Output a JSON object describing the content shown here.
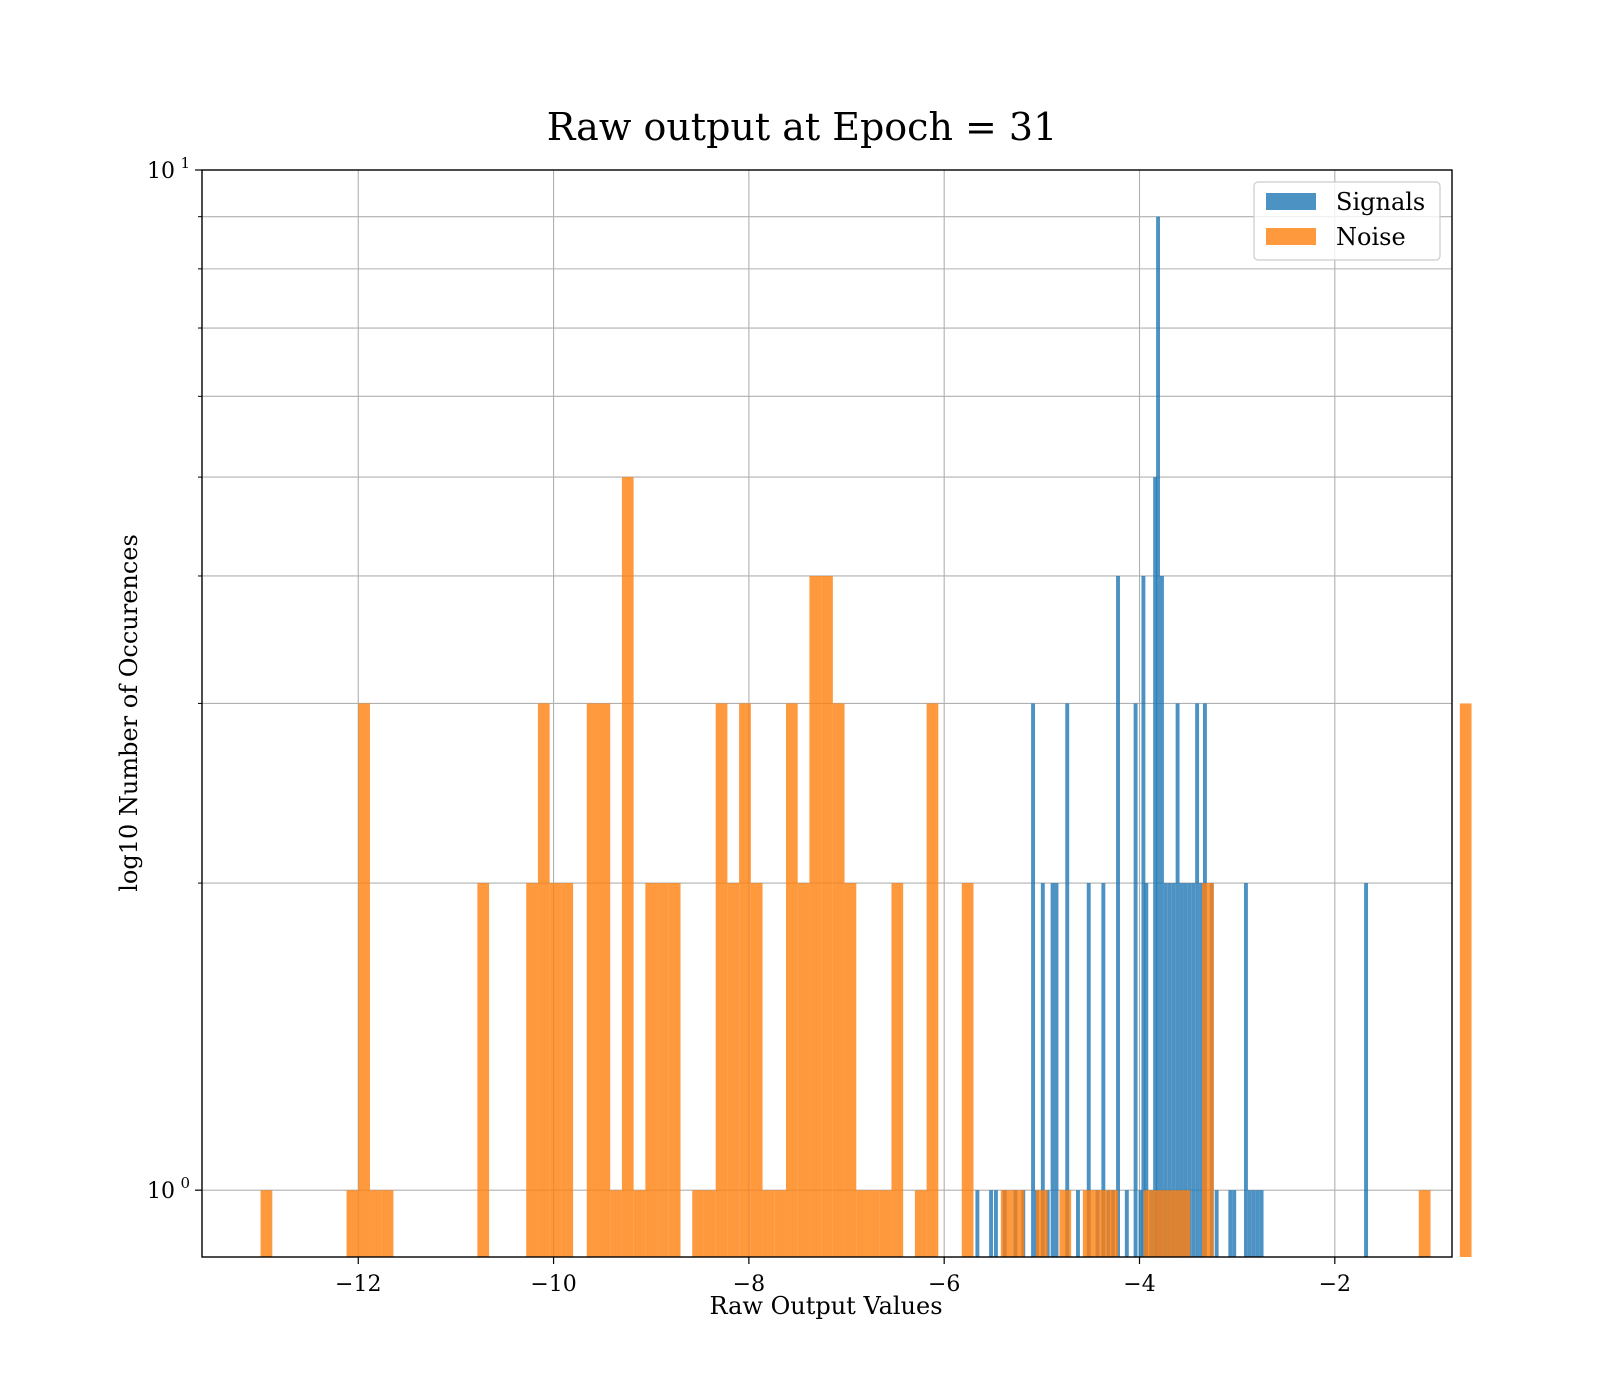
{
  "chart_data": {
    "type": "bar",
    "title": "Raw output at Epoch = 31",
    "xlabel": "Raw Output Values",
    "ylabel": "log10 Number of Occurences",
    "y_scale": "log",
    "xlim": [
      -13.6,
      -0.8
    ],
    "ylim": [
      0.86,
      10
    ],
    "x_ticks": [
      {
        "value": -12,
        "label": "−12"
      },
      {
        "value": -10,
        "label": "−10"
      },
      {
        "value": -8,
        "label": "−8"
      },
      {
        "value": -6,
        "label": "−6"
      },
      {
        "value": -4,
        "label": "−4"
      },
      {
        "value": -2,
        "label": "−2"
      }
    ],
    "y_ticks": [
      {
        "value": 1,
        "base": "10",
        "exp": "0"
      },
      {
        "value": 10,
        "base": "10",
        "exp": "1"
      }
    ],
    "y_minor_ticks": [
      2,
      3,
      4,
      5,
      6,
      7,
      8,
      9
    ],
    "grid": true,
    "legend_position": "top-right",
    "series": [
      {
        "name": "Signals",
        "color": "#1f77b4",
        "bin_width": 0.04,
        "bins": [
          {
            "x": -5.66,
            "count": 1
          },
          {
            "x": -5.52,
            "count": 1
          },
          {
            "x": -5.47,
            "count": 1
          },
          {
            "x": -5.38,
            "count": 1
          },
          {
            "x": -5.27,
            "count": 1
          },
          {
            "x": -5.19,
            "count": 1
          },
          {
            "x": -5.09,
            "count": 3
          },
          {
            "x": -5.05,
            "count": 1
          },
          {
            "x": -4.99,
            "count": 2
          },
          {
            "x": -4.94,
            "count": 1
          },
          {
            "x": -4.89,
            "count": 2
          },
          {
            "x": -4.85,
            "count": 2
          },
          {
            "x": -4.74,
            "count": 3
          },
          {
            "x": -4.63,
            "count": 1
          },
          {
            "x": -4.52,
            "count": 2
          },
          {
            "x": -4.43,
            "count": 1
          },
          {
            "x": -4.37,
            "count": 2
          },
          {
            "x": -4.32,
            "count": 1
          },
          {
            "x": -4.27,
            "count": 1
          },
          {
            "x": -4.22,
            "count": 4
          },
          {
            "x": -4.13,
            "count": 1
          },
          {
            "x": -4.04,
            "count": 3
          },
          {
            "x": -3.99,
            "count": 1
          },
          {
            "x": -3.96,
            "count": 4
          },
          {
            "x": -3.93,
            "count": 2
          },
          {
            "x": -3.88,
            "count": 1
          },
          {
            "x": -3.84,
            "count": 5
          },
          {
            "x": -3.81,
            "count": 9
          },
          {
            "x": -3.77,
            "count": 4
          },
          {
            "x": -3.73,
            "count": 2
          },
          {
            "x": -3.69,
            "count": 2
          },
          {
            "x": -3.65,
            "count": 2
          },
          {
            "x": -3.61,
            "count": 3
          },
          {
            "x": -3.57,
            "count": 2
          },
          {
            "x": -3.53,
            "count": 2
          },
          {
            "x": -3.49,
            "count": 2
          },
          {
            "x": -3.45,
            "count": 2
          },
          {
            "x": -3.41,
            "count": 3
          },
          {
            "x": -3.37,
            "count": 2
          },
          {
            "x": -3.33,
            "count": 3
          },
          {
            "x": -3.26,
            "count": 2
          },
          {
            "x": -3.21,
            "count": 1
          },
          {
            "x": -3.07,
            "count": 1
          },
          {
            "x": -3.03,
            "count": 1
          },
          {
            "x": -2.91,
            "count": 2
          },
          {
            "x": -2.87,
            "count": 1
          },
          {
            "x": -2.83,
            "count": 1
          },
          {
            "x": -2.79,
            "count": 1
          },
          {
            "x": -2.75,
            "count": 1
          },
          {
            "x": -1.68,
            "count": 2
          }
        ]
      },
      {
        "name": "Noise",
        "color": "#ff7f0e",
        "bin_width": 0.12,
        "bins": [
          {
            "x": -12.94,
            "count": 1
          },
          {
            "x": -12.06,
            "count": 1
          },
          {
            "x": -11.94,
            "count": 3
          },
          {
            "x": -11.82,
            "count": 1
          },
          {
            "x": -11.7,
            "count": 1
          },
          {
            "x": -10.72,
            "count": 2
          },
          {
            "x": -10.22,
            "count": 2
          },
          {
            "x": -10.1,
            "count": 3
          },
          {
            "x": -9.98,
            "count": 2
          },
          {
            "x": -9.86,
            "count": 2
          },
          {
            "x": -9.6,
            "count": 3
          },
          {
            "x": -9.48,
            "count": 3
          },
          {
            "x": -9.36,
            "count": 1
          },
          {
            "x": -9.24,
            "count": 5
          },
          {
            "x": -9.12,
            "count": 1
          },
          {
            "x": -9.0,
            "count": 2
          },
          {
            "x": -8.88,
            "count": 2
          },
          {
            "x": -8.76,
            "count": 2
          },
          {
            "x": -8.52,
            "count": 1
          },
          {
            "x": -8.4,
            "count": 1
          },
          {
            "x": -8.28,
            "count": 3
          },
          {
            "x": -8.16,
            "count": 2
          },
          {
            "x": -8.04,
            "count": 3
          },
          {
            "x": -7.92,
            "count": 2
          },
          {
            "x": -7.8,
            "count": 1
          },
          {
            "x": -7.68,
            "count": 1
          },
          {
            "x": -7.56,
            "count": 3
          },
          {
            "x": -7.44,
            "count": 2
          },
          {
            "x": -7.32,
            "count": 4
          },
          {
            "x": -7.2,
            "count": 4
          },
          {
            "x": -7.08,
            "count": 3
          },
          {
            "x": -6.96,
            "count": 2
          },
          {
            "x": -6.84,
            "count": 1
          },
          {
            "x": -6.72,
            "count": 1
          },
          {
            "x": -6.6,
            "count": 1
          },
          {
            "x": -6.48,
            "count": 2
          },
          {
            "x": -6.24,
            "count": 1
          },
          {
            "x": -6.12,
            "count": 3
          },
          {
            "x": -5.76,
            "count": 2
          },
          {
            "x": -5.36,
            "count": 1
          },
          {
            "x": -5.24,
            "count": 1
          },
          {
            "x": -5.0,
            "count": 1
          },
          {
            "x": -4.76,
            "count": 1
          },
          {
            "x": -4.52,
            "count": 1
          },
          {
            "x": -4.4,
            "count": 1
          },
          {
            "x": -4.28,
            "count": 1
          },
          {
            "x": -3.9,
            "count": 1
          },
          {
            "x": -3.78,
            "count": 1
          },
          {
            "x": -3.66,
            "count": 1
          },
          {
            "x": -3.54,
            "count": 1
          },
          {
            "x": -3.3,
            "count": 2
          },
          {
            "x": -1.08,
            "count": 1
          },
          {
            "x": -0.66,
            "count": 3
          }
        ]
      }
    ]
  }
}
